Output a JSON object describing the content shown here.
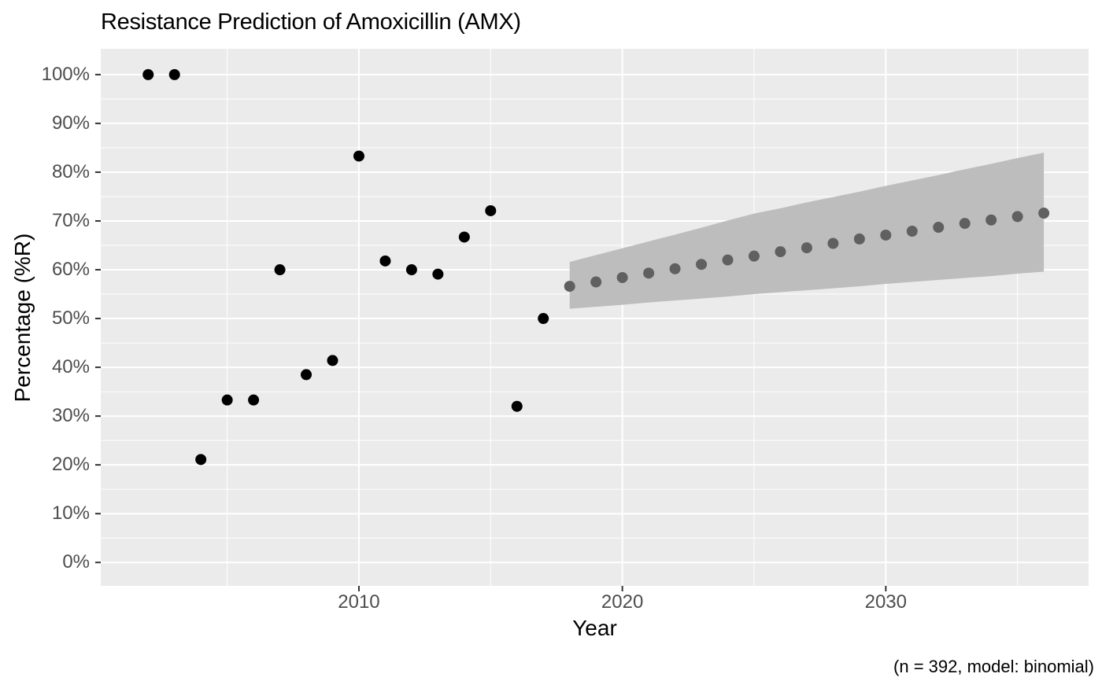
{
  "chart_data": {
    "type": "scatter",
    "title": "Resistance Prediction of Amoxicillin (AMX)",
    "xlabel": "Year",
    "ylabel": "Percentage (%R)",
    "caption": "(n = 392, model: binomial)",
    "xlim": [
      2000.2,
      2037.7
    ],
    "ylim": [
      -4.8,
      105.3
    ],
    "grid": true,
    "legend": "none",
    "x_ticks": [
      {
        "value": 2010,
        "label": "2010"
      },
      {
        "value": 2020,
        "label": "2020"
      },
      {
        "value": 2030,
        "label": "2030"
      }
    ],
    "x_minor_ticks": [
      2005,
      2015,
      2025,
      2035
    ],
    "y_ticks": [
      {
        "value": 0,
        "label": "0%"
      },
      {
        "value": 10,
        "label": "10%"
      },
      {
        "value": 20,
        "label": "20%"
      },
      {
        "value": 30,
        "label": "30%"
      },
      {
        "value": 40,
        "label": "40%"
      },
      {
        "value": 50,
        "label": "50%"
      },
      {
        "value": 60,
        "label": "60%"
      },
      {
        "value": 70,
        "label": "70%"
      },
      {
        "value": 80,
        "label": "80%"
      },
      {
        "value": 90,
        "label": "90%"
      },
      {
        "value": 100,
        "label": "100%"
      }
    ],
    "y_minor_ticks": [
      5,
      15,
      25,
      35,
      45,
      55,
      65,
      75,
      85,
      95
    ],
    "series": [
      {
        "name": "observed",
        "color": "#000000",
        "marker_radius": 7,
        "points": [
          [
            2002,
            100
          ],
          [
            2003,
            100
          ],
          [
            2004,
            21.1
          ],
          [
            2005,
            33.3
          ],
          [
            2006,
            33.3
          ],
          [
            2007,
            60.0
          ],
          [
            2008,
            38.5
          ],
          [
            2009,
            41.4
          ],
          [
            2010,
            83.3
          ],
          [
            2011,
            61.8
          ],
          [
            2012,
            60.0
          ],
          [
            2013,
            59.1
          ],
          [
            2014,
            66.7
          ],
          [
            2015,
            72.1
          ],
          [
            2016,
            32.0
          ],
          [
            2017,
            50.0
          ]
        ]
      },
      {
        "name": "predicted",
        "color": "#606060",
        "marker_radius": 7,
        "points": [
          [
            2018,
            56.6
          ],
          [
            2019,
            57.5
          ],
          [
            2020,
            58.4
          ],
          [
            2021,
            59.3
          ],
          [
            2022,
            60.2
          ],
          [
            2023,
            61.1
          ],
          [
            2024,
            62.0
          ],
          [
            2025,
            62.8
          ],
          [
            2026,
            63.7
          ],
          [
            2027,
            64.5
          ],
          [
            2028,
            65.4
          ],
          [
            2029,
            66.3
          ],
          [
            2030,
            67.1
          ],
          [
            2031,
            67.9
          ],
          [
            2032,
            68.7
          ],
          [
            2033,
            69.5
          ],
          [
            2034,
            70.2
          ],
          [
            2035,
            70.9
          ],
          [
            2036,
            71.6
          ]
        ]
      }
    ],
    "ribbon": {
      "name": "confidence-interval",
      "color": "#bdbdbd",
      "x": [
        2018,
        2019,
        2020,
        2021,
        2022,
        2023,
        2024,
        2025,
        2026,
        2027,
        2028,
        2029,
        2030,
        2031,
        2032,
        2033,
        2034,
        2035,
        2036
      ],
      "upper": [
        61.6,
        63.0,
        64.4,
        65.8,
        67.2,
        68.6,
        70.1,
        71.5,
        72.6,
        73.8,
        74.9,
        76.0,
        77.2,
        78.3,
        79.4,
        80.6,
        81.7,
        82.9,
        84.0
      ],
      "lower": [
        52.0,
        52.4,
        52.8,
        53.3,
        53.7,
        54.1,
        54.5,
        55.0,
        55.4,
        55.8,
        56.2,
        56.6,
        57.1,
        57.5,
        57.9,
        58.3,
        58.7,
        59.2,
        59.6
      ]
    },
    "colors": {
      "panel_background": "#ebebeb",
      "grid": "#ffffff",
      "axis_tick": "#333333",
      "tick_label": "#4d4d4d",
      "text": "#000000"
    }
  }
}
